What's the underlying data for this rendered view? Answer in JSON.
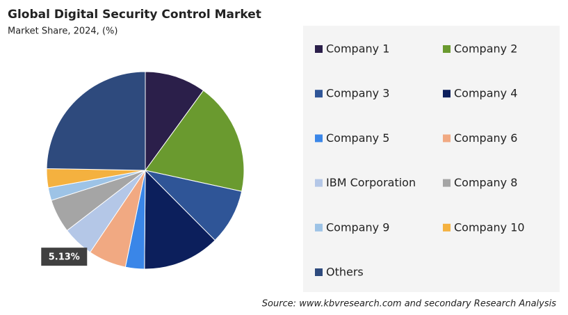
{
  "chart_data": {
    "type": "pie",
    "title": "Global Digital Security Control Market",
    "subtitle": "Market Share, 2024, (%)",
    "categories": [
      "Company 1",
      "Company 2",
      "Company 3",
      "Company 4",
      "Company 5",
      "Company 6",
      "IBM Corporation",
      "Company 8",
      "Company 9",
      "Company 10",
      "Others"
    ],
    "values": [
      10,
      18.4,
      9.1,
      12.6,
      3.1,
      6.2,
      5.13,
      5.5,
      2.1,
      3.1,
      24.7
    ],
    "value_labels": [
      null,
      null,
      null,
      null,
      null,
      null,
      "5.13%",
      null,
      null,
      null,
      null
    ],
    "colors": [
      "#2b1f4a",
      "#6a9a2f",
      "#2f5597",
      "#0c1f5c",
      "#3a86e8",
      "#f1a982",
      "#b4c7e7",
      "#a5a5a5",
      "#9dc3e6",
      "#f4b13f",
      "#2e4a7d"
    ],
    "legend_position": "right",
    "source": "Source: www.kbvresearch.com and secondary Research Analysis"
  }
}
